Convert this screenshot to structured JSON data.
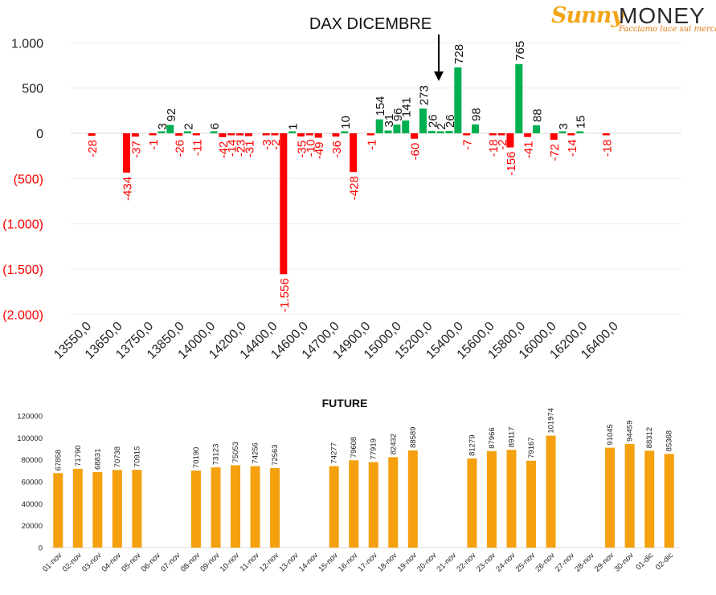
{
  "logo": {
    "word1": "Sunny",
    "word2": "MONEY",
    "tagline": "Facciamo luce sui mercati"
  },
  "colors": {
    "positive": "#00b050",
    "negative": "#ff0000",
    "future_bar": "#f5a00f"
  },
  "chart_data": [
    {
      "type": "bar",
      "title": "DAX DICEMBRE",
      "ylim": [
        -2000,
        1000
      ],
      "yticks": [
        {
          "value": 1000,
          "label": "1.000"
        },
        {
          "value": 500,
          "label": "500"
        },
        {
          "value": 0,
          "label": "0"
        },
        {
          "value": -500,
          "label": "(500)"
        },
        {
          "value": -1000,
          "label": "(1.000)"
        },
        {
          "value": -1500,
          "label": "(1.500)"
        },
        {
          "value": -2000,
          "label": "(2.000)"
        }
      ],
      "xtick_labels": [
        "13550,0",
        "13650,0",
        "13750,0",
        "13850,0",
        "14000,0",
        "14200,0",
        "14400,0",
        "14600,0",
        "14700,0",
        "14900,0",
        "15000,0",
        "15200,0",
        "15400,0",
        "15600,0",
        "15800,0",
        "16000,0",
        "16200,0",
        "16400,0"
      ],
      "values": [
        -28,
        -434,
        -37,
        -1,
        3,
        92,
        -26,
        2,
        -11,
        6,
        -42,
        -14,
        -23,
        -31,
        -3,
        -2,
        -1556,
        1,
        -35,
        -10,
        -49,
        -36,
        10,
        -428,
        -1,
        154,
        31,
        96,
        141,
        -60,
        273,
        26,
        2,
        26,
        728,
        -7,
        98,
        -18,
        -2,
        -156,
        765,
        -41,
        88,
        -72,
        3,
        -14,
        15,
        -18
      ],
      "slots": [
        2,
        6,
        7,
        9,
        10,
        11,
        12,
        13,
        14,
        16,
        17,
        18,
        19,
        20,
        22,
        23,
        24,
        25,
        26,
        27,
        28,
        30,
        31,
        32,
        34,
        35,
        36,
        37,
        38,
        39,
        40,
        41,
        42,
        43,
        44,
        45,
        46,
        48,
        49,
        50,
        51,
        52,
        53,
        55,
        56,
        57,
        58,
        61
      ],
      "grid": true,
      "annotation": "arrow"
    },
    {
      "type": "bar",
      "title": "FUTURE",
      "ylim": [
        0,
        120000
      ],
      "yticks": [
        0,
        20000,
        40000,
        60000,
        80000,
        100000,
        120000
      ],
      "categories": [
        "01-nov",
        "02-nov",
        "03-nov",
        "04-nov",
        "05-nov",
        "06-nov",
        "07-nov",
        "08-nov",
        "09-nov",
        "10-nov",
        "11-nov",
        "12-nov",
        "13-nov",
        "14-nov",
        "15-nov",
        "16-nov",
        "17-nov",
        "18-nov",
        "19-nov",
        "20-nov",
        "21-nov",
        "22-nov",
        "23-nov",
        "24-nov",
        "25-nov",
        "26-nov",
        "27-nov",
        "28-nov",
        "29-nov",
        "30-nov",
        "01-dic",
        "02-dic"
      ],
      "values": [
        67858,
        71790,
        68831,
        70738,
        70915,
        null,
        null,
        70190,
        73123,
        75053,
        74256,
        72563,
        null,
        null,
        74277,
        79608,
        77919,
        82432,
        88589,
        null,
        null,
        81279,
        87966,
        89117,
        79167,
        101974,
        null,
        null,
        91045,
        94459,
        88312,
        85368
      ],
      "grid": false
    }
  ]
}
